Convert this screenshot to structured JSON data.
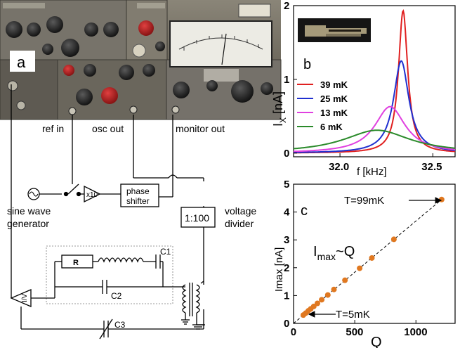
{
  "panel_a": {
    "label": "a",
    "connector_labels": {
      "ref_in": "ref in",
      "osc_out": "osc out",
      "monitor_out": "monitor out"
    },
    "circuit": {
      "sine_wave_generator": [
        "sine wave",
        "generator"
      ],
      "amplifier": "x10",
      "phase_shifter": [
        "phase",
        "shifter"
      ],
      "voltage_divider_box": "1:100",
      "voltage_divider_label": [
        "voltage",
        "divider"
      ],
      "resistor": "R",
      "c1": "C1",
      "c2": "C2",
      "c3": "C3",
      "iv_converter": "I/V"
    }
  },
  "chart_data": [
    {
      "panel": "b",
      "type": "line",
      "xlabel": "f [kHz]",
      "ylabel": "I",
      "ylabel_sub": "X",
      "ylabel_unit": " [nA]",
      "xlim": [
        31.75,
        32.62
      ],
      "ylim": [
        -0.05,
        2.0
      ],
      "xticks": [
        32.0,
        32.5
      ],
      "xtick_labels": [
        "32.0",
        "32.5"
      ],
      "yticks": [
        0,
        1,
        2
      ],
      "ytick_labels": [
        "0",
        "1",
        "2"
      ],
      "legend_position": "left",
      "series": [
        {
          "name": "39 mK",
          "color": "#e02020",
          "f0": 32.34,
          "peak": 1.93,
          "width": 0.03
        },
        {
          "name": "25 mK",
          "color": "#2030d0",
          "f0": 32.33,
          "peak": 1.25,
          "width": 0.05
        },
        {
          "name": "13 mK",
          "color": "#e040e0",
          "f0": 32.27,
          "peak": 0.63,
          "width": 0.1
        },
        {
          "name": "6 mK",
          "color": "#2a8a2a",
          "f0": 32.2,
          "peak": 0.31,
          "width": 0.22
        }
      ]
    },
    {
      "panel": "c",
      "type": "scatter",
      "xlabel": "Q",
      "ylabel": "Imax [nA]",
      "xlim": [
        0,
        1320
      ],
      "ylim": [
        0,
        5
      ],
      "xticks": [
        0,
        500,
        1000
      ],
      "xtick_labels": [
        "0",
        "500",
        "1000"
      ],
      "yticks": [
        0,
        1,
        2,
        3,
        4,
        5
      ],
      "ytick_labels": [
        "0",
        "1",
        "2",
        "3",
        "4",
        "5"
      ],
      "marker_color": "#e07820",
      "fit_line": {
        "x": [
          0,
          1210
        ],
        "y": [
          0,
          4.45
        ]
      },
      "points": [
        [
          80,
          0.3
        ],
        [
          100,
          0.37
        ],
        [
          120,
          0.45
        ],
        [
          140,
          0.52
        ],
        [
          165,
          0.61
        ],
        [
          195,
          0.72
        ],
        [
          230,
          0.85
        ],
        [
          280,
          1.02
        ],
        [
          330,
          1.22
        ],
        [
          420,
          1.55
        ],
        [
          540,
          1.98
        ],
        [
          640,
          2.35
        ],
        [
          820,
          3.02
        ],
        [
          1210,
          4.45
        ]
      ],
      "annotations": {
        "top": "T=99mK",
        "bottom": "T=5mK",
        "relation_main": "I",
        "relation_sub": "max",
        "relation_tail": "~Q"
      }
    }
  ]
}
